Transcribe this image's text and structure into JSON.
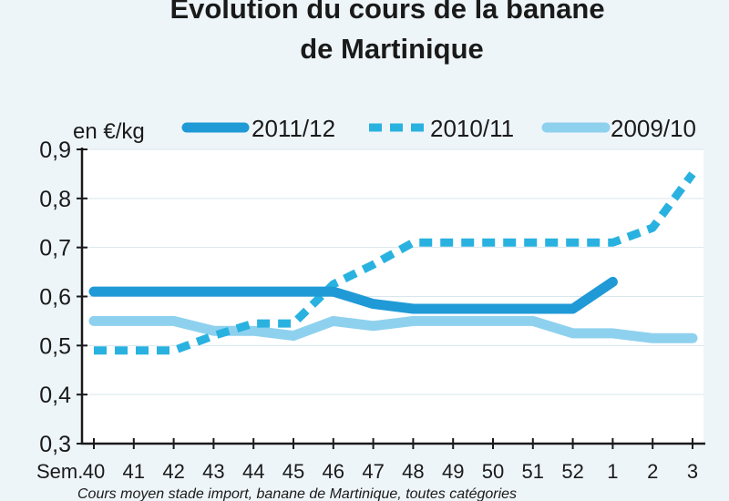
{
  "chart_data": {
    "type": "line",
    "title_line1": "Évolution du cours de la banane",
    "title_line2": "de Martinique",
    "ylabel": "en €/kg",
    "xlabel_prefix": "Sem.",
    "caption": "Cours moyen stade import, banane de Martinique, toutes catégories",
    "categories": [
      "40",
      "41",
      "42",
      "43",
      "44",
      "45",
      "46",
      "47",
      "48",
      "49",
      "50",
      "51",
      "52",
      "1",
      "2",
      "3"
    ],
    "y_ticks": [
      "0,3",
      "0,4",
      "0,5",
      "0,6",
      "0,7",
      "0,8",
      "0,9"
    ],
    "ylim": [
      0.3,
      0.9
    ],
    "series": [
      {
        "name": "2011/12",
        "style": "solid",
        "color": "#1f9ad6",
        "values": [
          0.61,
          0.61,
          0.61,
          0.61,
          0.61,
          0.61,
          0.61,
          0.585,
          0.575,
          0.575,
          0.575,
          0.575,
          0.575,
          0.63,
          null,
          null
        ]
      },
      {
        "name": "2010/11",
        "style": "dashed",
        "color": "#29b2e0",
        "values": [
          0.49,
          0.49,
          0.49,
          0.52,
          0.545,
          0.545,
          0.625,
          0.665,
          0.71,
          0.71,
          0.71,
          0.71,
          0.71,
          0.71,
          0.74,
          0.85
        ]
      },
      {
        "name": "2009/10",
        "style": "solid",
        "color": "#8ed1ee",
        "values": [
          0.55,
          0.55,
          0.55,
          0.53,
          0.53,
          0.52,
          0.55,
          0.54,
          0.55,
          0.55,
          0.55,
          0.55,
          0.525,
          0.525,
          0.515,
          0.515
        ]
      }
    ]
  }
}
